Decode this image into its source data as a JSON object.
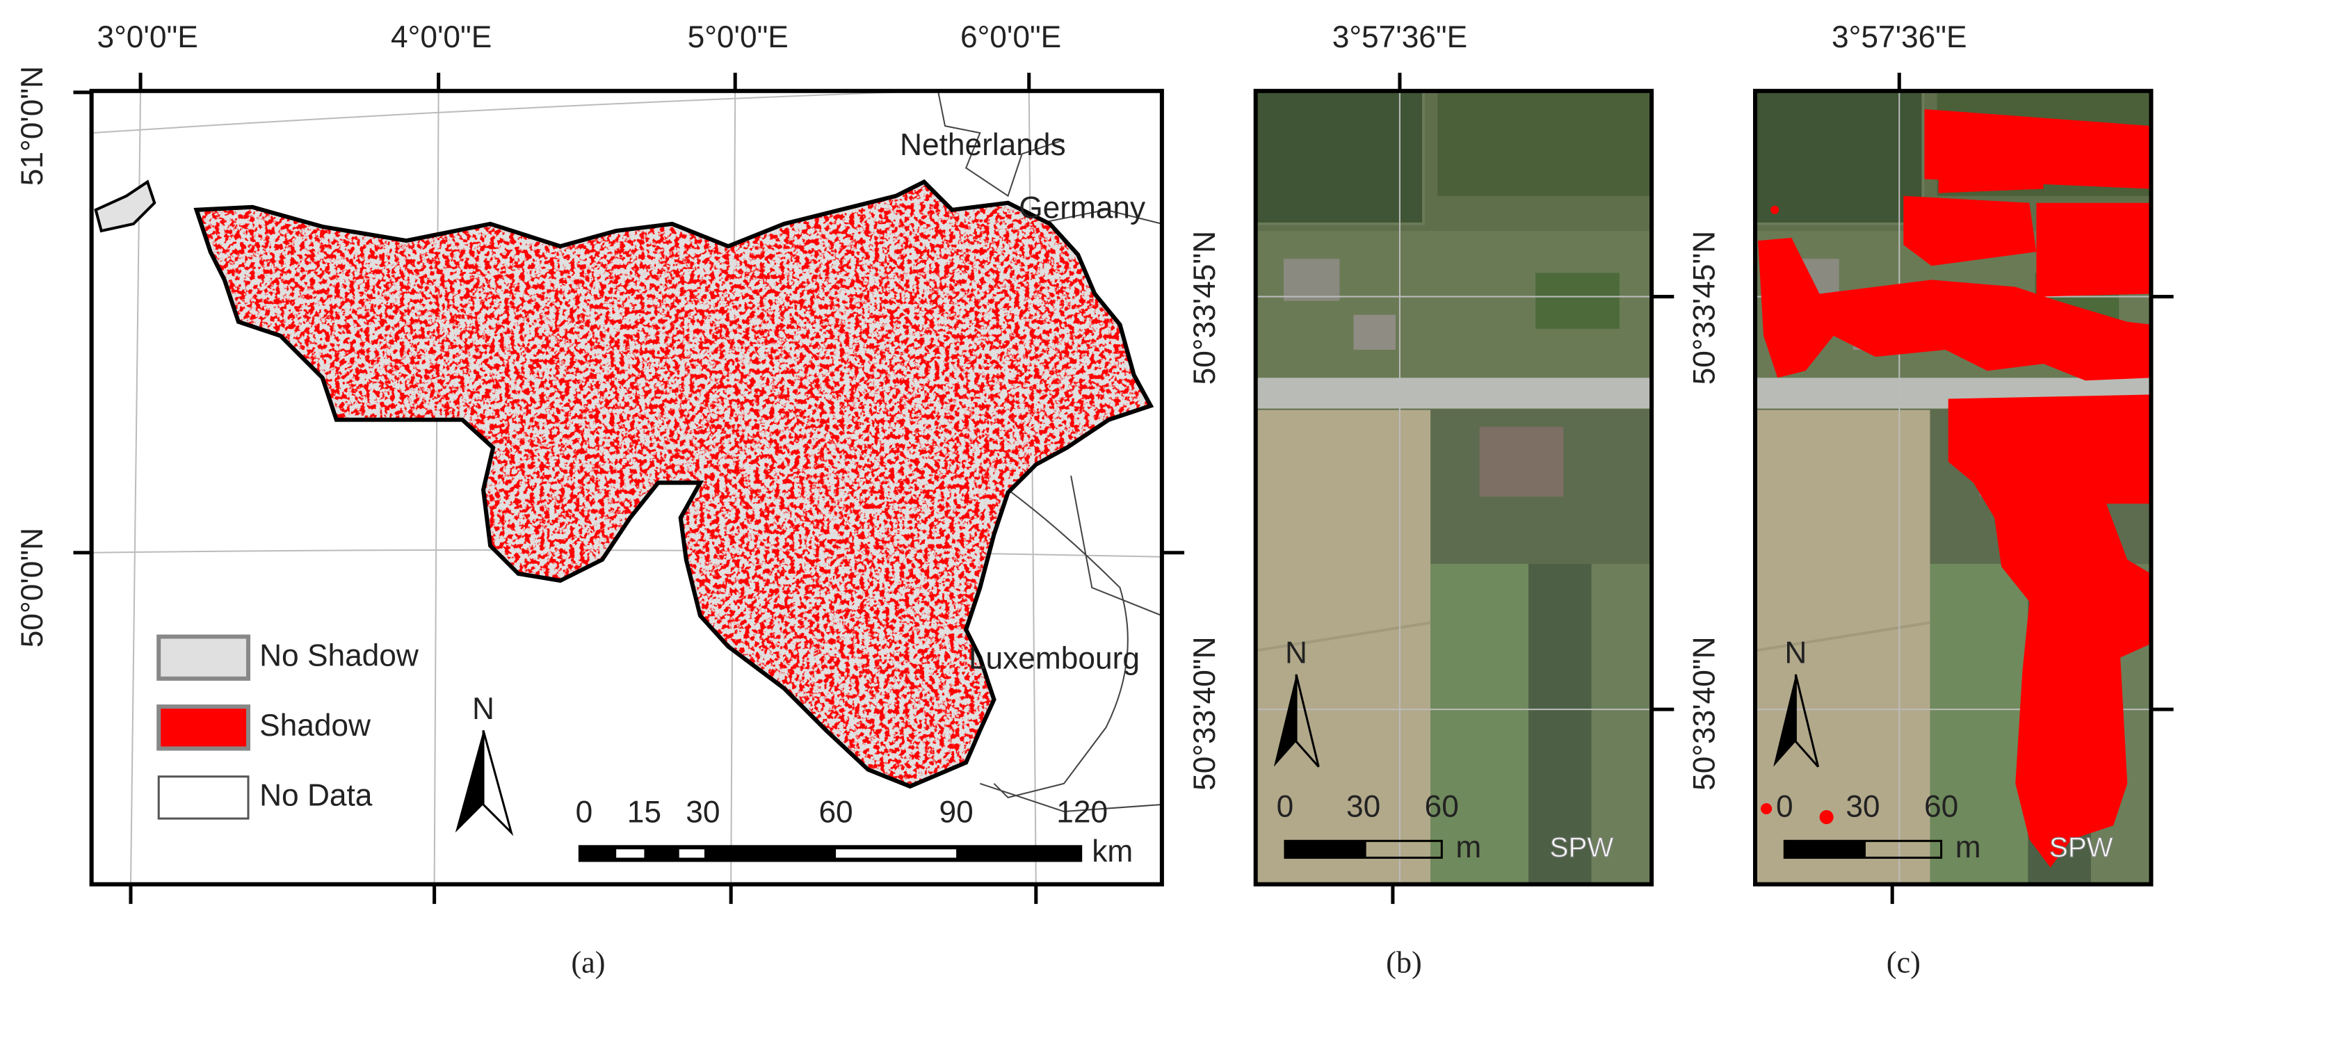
{
  "panel_a": {
    "lon_labels": [
      "3°0'0\"E",
      "4°0'0\"E",
      "5°0'0\"E",
      "6°0'0\"E"
    ],
    "lat_labels": [
      "51°0'0\"N",
      "50°0'0\"N"
    ],
    "countries": [
      "Netherlands",
      "Germany",
      "Luxembourg"
    ],
    "legend": [
      "No Shadow",
      "Shadow",
      "No Data"
    ],
    "north": "N",
    "scale_labels": [
      "0",
      "15",
      "30",
      "60",
      "90",
      "120"
    ],
    "scale_unit": "km",
    "caption": "(a)"
  },
  "panel_b": {
    "lon_label": "3°57'36\"E",
    "lat_labels": [
      "50°33'45\"N",
      "50°33'40\"N"
    ],
    "north": "N",
    "scale_labels": [
      "0",
      "30",
      "60"
    ],
    "scale_unit": "m",
    "credit": "SPW",
    "caption": "(b)"
  },
  "panel_c": {
    "lon_label": "3°57'36\"E",
    "lat_labels": [
      "50°33'45\"N",
      "50°33'40\"N"
    ],
    "north": "N",
    "scale_labels": [
      "0",
      "30",
      "60"
    ],
    "scale_unit": "m",
    "credit": "SPW",
    "caption": "(c)"
  }
}
